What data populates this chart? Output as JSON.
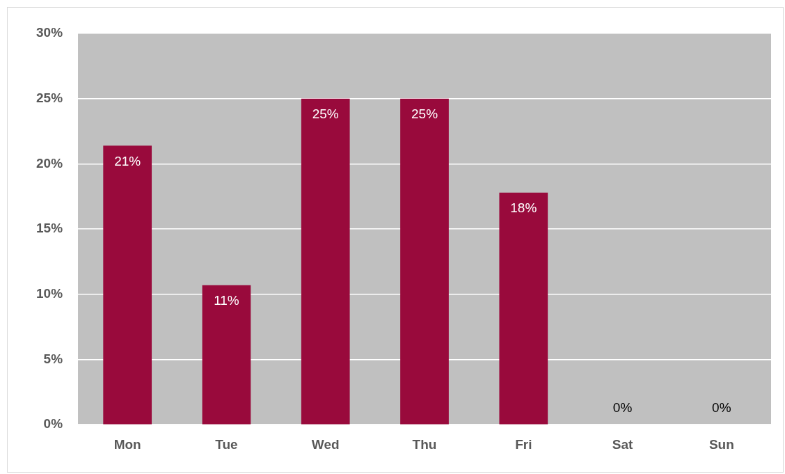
{
  "chart_data": {
    "type": "bar",
    "categories": [
      "Mon",
      "Tue",
      "Wed",
      "Thu",
      "Fri",
      "Sat",
      "Sun"
    ],
    "series": [
      {
        "color": "#990a3c",
        "values": [
          21.4,
          10.7,
          25,
          25,
          17.8,
          0,
          0
        ],
        "value_labels": [
          "21%",
          "11%",
          "25%",
          "25%",
          "18%",
          "0%",
          "0%"
        ]
      }
    ],
    "ylim": [
      0,
      30
    ],
    "yticks": [
      {
        "value": 0,
        "label": "0%"
      },
      {
        "value": 5,
        "label": "5%"
      },
      {
        "value": 10,
        "label": "10%"
      },
      {
        "value": 15,
        "label": "15%"
      },
      {
        "value": 20,
        "label": "20%"
      },
      {
        "value": 25,
        "label": "25%"
      },
      {
        "value": 30,
        "label": "30%"
      }
    ],
    "grid": "y",
    "legend": false
  }
}
